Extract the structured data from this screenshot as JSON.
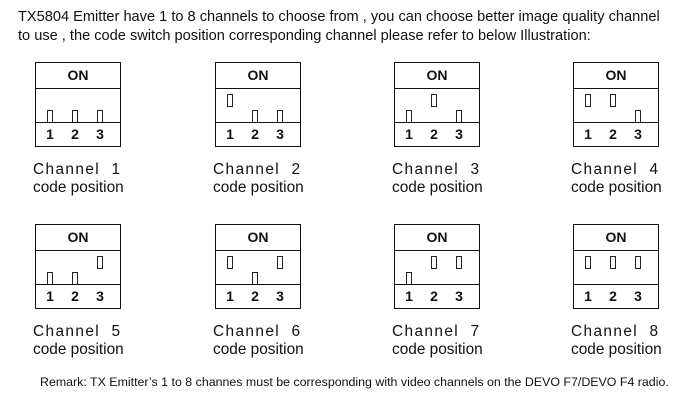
{
  "intro": {
    "line1": "TX5804 Emitter have 1 to 8 channels to choose from , you can choose better image quality channel",
    "line2": "to use , the code switch position corresponding channel please refer to below Illustration:"
  },
  "on_label": "ON",
  "switch_numbers": [
    "1",
    "2",
    "3"
  ],
  "code_position_label": "code position",
  "channels": [
    {
      "label": "Channel  1",
      "switches": [
        "off",
        "off",
        "off"
      ]
    },
    {
      "label": "Channel  2",
      "switches": [
        "on",
        "off",
        "off"
      ]
    },
    {
      "label": "Channel  3",
      "switches": [
        "off",
        "on",
        "off"
      ]
    },
    {
      "label": "Channel  4",
      "switches": [
        "on",
        "on",
        "off"
      ]
    },
    {
      "label": "Channel  5",
      "switches": [
        "off",
        "off",
        "on"
      ]
    },
    {
      "label": "Channel  6",
      "switches": [
        "on",
        "off",
        "on"
      ]
    },
    {
      "label": "Channel  7",
      "switches": [
        "off",
        "on",
        "on"
      ]
    },
    {
      "label": "Channel  8",
      "switches": [
        "on",
        "on",
        "on"
      ]
    }
  ],
  "remark": "Remark: TX Emitter’s 1 to 8 channes must be corresponding with video channels on the DEVO F7/DEVO F4 radio."
}
